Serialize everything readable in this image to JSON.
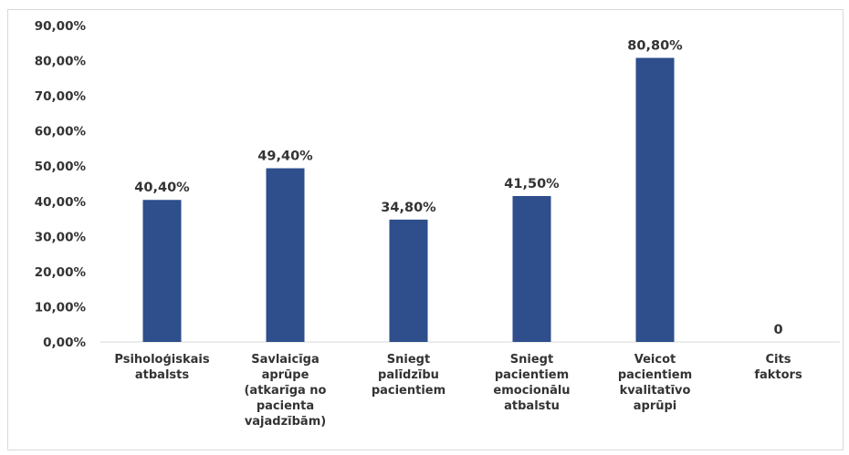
{
  "chart_data": {
    "type": "bar",
    "categories": [
      [
        "Psiholoģiskais",
        "atbalsts"
      ],
      [
        "Savlaicīga",
        "aprūpe",
        "(atkarīga no",
        "pacienta",
        "vajadzībām)"
      ],
      [
        "Sniegt",
        "palīdzību",
        "pacientiem"
      ],
      [
        "Sniegt",
        "pacientiem",
        "emocionālu",
        "atbalstu"
      ],
      [
        "Veicot",
        "pacientiem",
        "kvalitatīvo",
        "aprūpi"
      ],
      [
        "Cits",
        "faktors"
      ]
    ],
    "values": [
      40.4,
      49.4,
      34.8,
      41.5,
      80.8,
      0
    ],
    "data_labels": [
      "40,40%",
      "49,40%",
      "34,80%",
      "41,50%",
      "80,80%",
      "0"
    ],
    "yticks": [
      "0,00%",
      "10,00%",
      "20,00%",
      "30,00%",
      "40,00%",
      "50,00%",
      "60,00%",
      "70,00%",
      "80,00%",
      "90,00%"
    ],
    "ylim": [
      0,
      90
    ],
    "grid": false,
    "colors": {
      "bar": "#2e4e8c",
      "axis": "#d9d9d9",
      "text": "#333333"
    }
  }
}
